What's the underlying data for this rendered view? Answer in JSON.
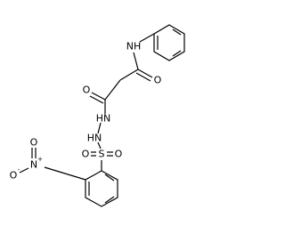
{
  "atoms": [
    {
      "label": "NH"
    },
    {
      "label": "O"
    },
    {
      "label": "O"
    },
    {
      "label": "HN"
    },
    {
      "label": "HN"
    },
    {
      "label": "S"
    },
    {
      "label": "O"
    },
    {
      "label": "O"
    },
    {
      "label": "N",
      "charge": "+"
    },
    {
      "label": "O",
      "charge": "-"
    },
    {
      "label": "O"
    }
  ]
}
